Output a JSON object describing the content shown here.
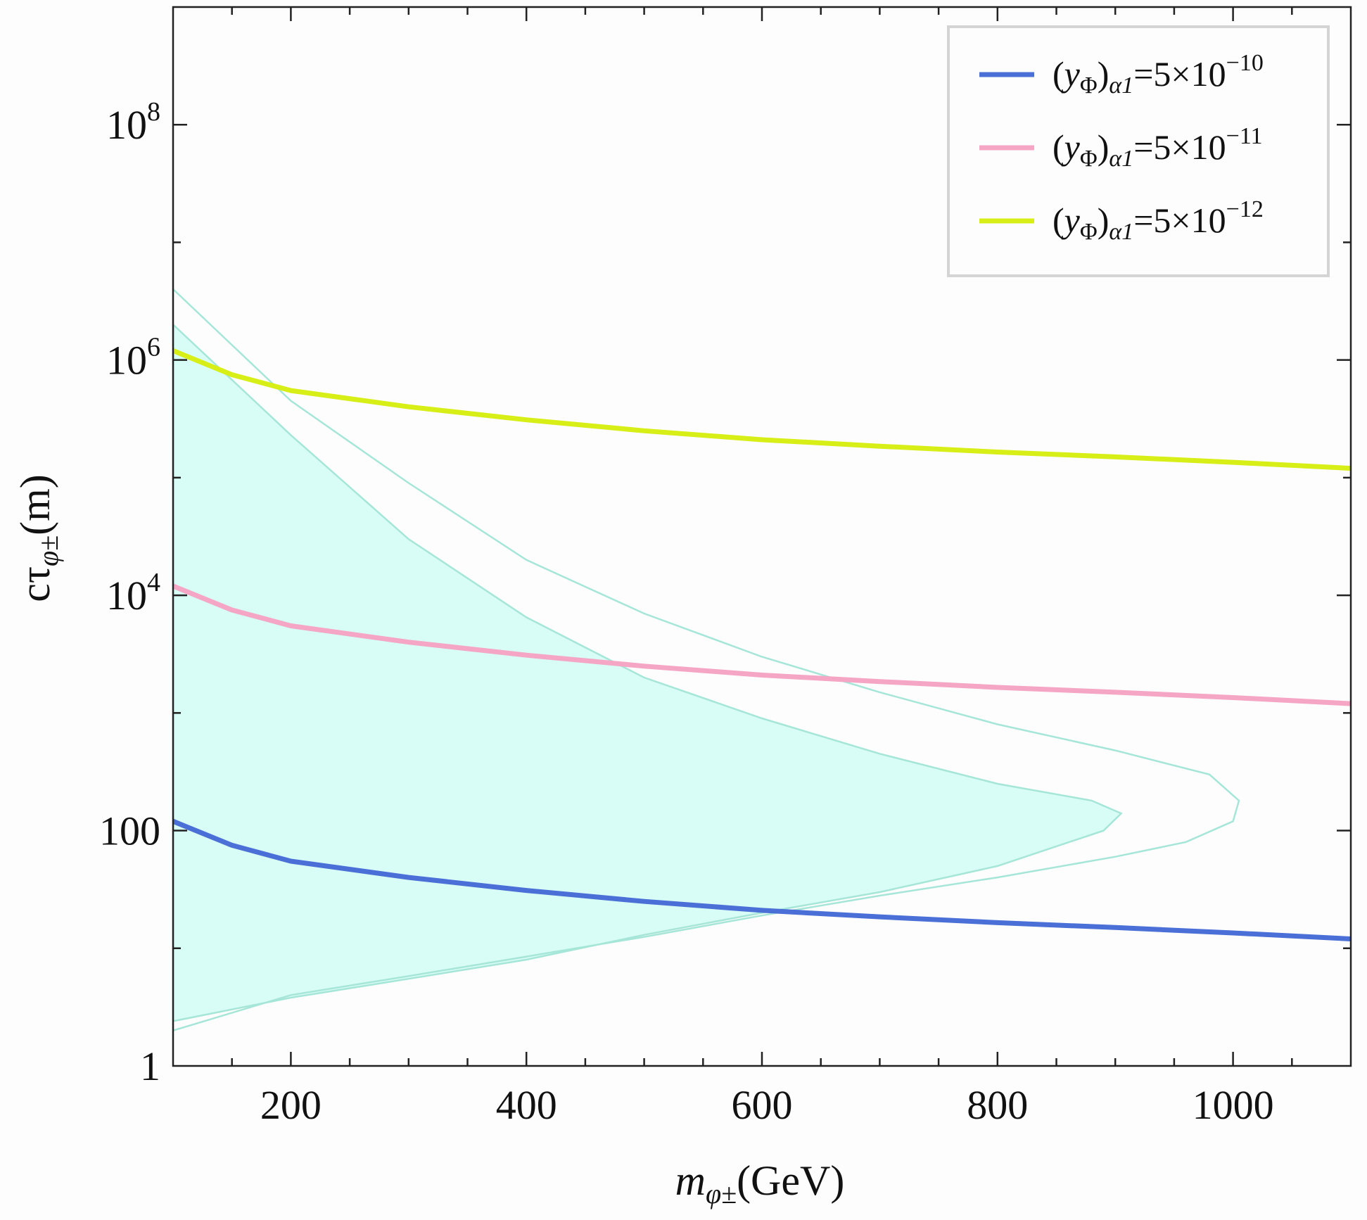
{
  "chart_data": {
    "type": "line",
    "xlabel": "m_{φ±}(GeV)",
    "xlabel_parts": {
      "main": "m",
      "sub": "φ±",
      "unit": "(GeV)"
    },
    "ylabel": "cτ_{φ±}(m)",
    "ylabel_parts": {
      "main": "cτ",
      "sub": "φ±",
      "unit": "(m)"
    },
    "xlim": [
      100,
      1100
    ],
    "ylim": [
      1,
      1000000000
    ],
    "yscale": "log",
    "x_ticks": [
      {
        "value": 200,
        "label": "200"
      },
      {
        "value": 400,
        "label": "400"
      },
      {
        "value": 600,
        "label": "600"
      },
      {
        "value": 800,
        "label": "800"
      },
      {
        "value": 1000,
        "label": "1000"
      }
    ],
    "y_ticks": [
      {
        "exp": 0,
        "label": "1"
      },
      {
        "exp": 2,
        "label": "100"
      },
      {
        "exp": 4,
        "label": "10",
        "sup": "4"
      },
      {
        "exp": 6,
        "label": "10",
        "sup": "6"
      },
      {
        "exp": 8,
        "label": "10",
        "sup": "8"
      }
    ],
    "grid": false,
    "legend_position": "top-right",
    "series": [
      {
        "name": "(y_Φ)_{α1}=5×10^{-10}",
        "label_parts": {
          "coef": "5×10",
          "exp": "−10"
        },
        "color": "#4a6fd6",
        "x": [
          100,
          150,
          200,
          300,
          400,
          500,
          600,
          700,
          800,
          900,
          1000,
          1100
        ],
        "y": [
          120,
          75,
          55,
          40,
          31,
          25,
          21,
          18.5,
          16.5,
          15,
          13.5,
          12
        ]
      },
      {
        "name": "(y_Φ)_{α1}=5×10^{-11}",
        "label_parts": {
          "coef": "5×10",
          "exp": "−11"
        },
        "color": "#f4a6c4",
        "x": [
          100,
          150,
          200,
          300,
          400,
          500,
          600,
          700,
          800,
          900,
          1000,
          1100
        ],
        "y": [
          12000,
          7500,
          5500,
          4000,
          3100,
          2500,
          2100,
          1850,
          1650,
          1500,
          1350,
          1200
        ]
      },
      {
        "name": "(y_Φ)_{α1}=5×10^{-12}",
        "label_parts": {
          "coef": "5×10",
          "exp": "−12"
        },
        "color": "#d8ee17",
        "x": [
          100,
          150,
          200,
          300,
          400,
          500,
          600,
          700,
          800,
          900,
          1000,
          1100
        ],
        "y": [
          1200000,
          750000,
          550000,
          400000,
          310000,
          250000,
          210000,
          185000,
          165000,
          150000,
          135000,
          120000
        ]
      }
    ],
    "regions": [
      {
        "fill": "#d8fcf6",
        "stroke": "#a6e6d8",
        "filled": true,
        "x": [
          100,
          200,
          300,
          400,
          500,
          600,
          700,
          800,
          880,
          905,
          890,
          800,
          700,
          600,
          500,
          400,
          300,
          200,
          100
        ],
        "y": [
          2000000,
          230000,
          30000,
          6500,
          2000,
          900,
          450,
          250,
          180,
          140,
          100,
          50,
          30,
          20,
          13,
          8,
          5.5,
          3.8,
          2.4
        ]
      },
      {
        "fill": "none",
        "stroke": "#a6e6d8",
        "filled": false,
        "x": [
          100,
          200,
          300,
          400,
          500,
          600,
          700,
          800,
          900,
          980,
          1005,
          1000,
          960,
          900,
          800,
          700,
          600,
          500,
          400,
          300,
          200,
          100
        ],
        "y": [
          4000000,
          450000,
          90000,
          20000,
          7000,
          3000,
          1500,
          800,
          480,
          300,
          180,
          120,
          80,
          60,
          40,
          28,
          19,
          12.5,
          8.5,
          5.8,
          4.0,
          2.0
        ]
      }
    ]
  }
}
